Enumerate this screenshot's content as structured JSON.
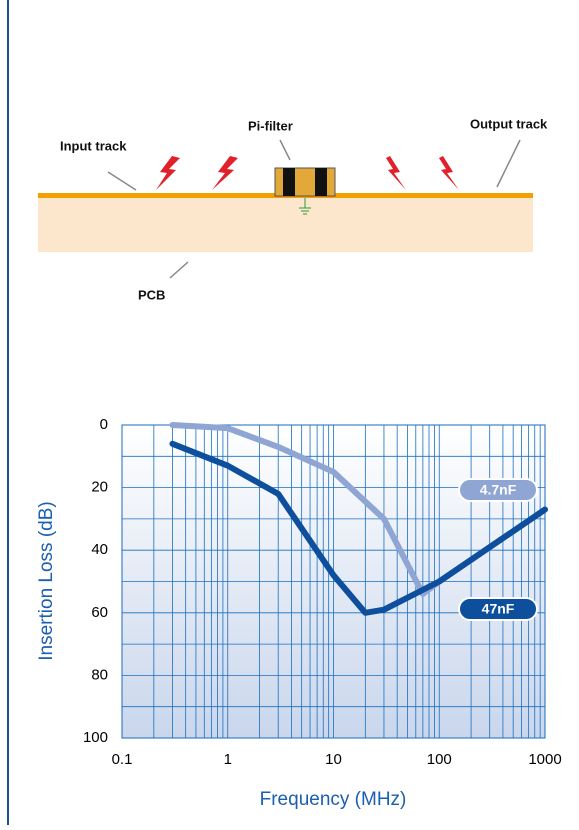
{
  "diagram": {
    "labels": {
      "input": "Input track",
      "filter": "Pi-filter",
      "output": "Output track",
      "pcb": "PCB"
    }
  },
  "chart_data": {
    "type": "line",
    "x_label": "Frequency (MHz)",
    "y_label": "Insertion Loss (dB)",
    "xlim": [
      0.1,
      1000
    ],
    "xticks": [
      0.1,
      1,
      10,
      100,
      1000
    ],
    "x_log": true,
    "ylim": [
      0,
      100
    ],
    "yticks": [
      0,
      20,
      40,
      60,
      80,
      100
    ],
    "y_inverted": true,
    "grid": true,
    "series": [
      {
        "name": "4.7nF",
        "color": "#8fa6d4",
        "x": [
          0.3,
          1,
          3,
          10,
          30,
          70,
          100,
          1000
        ],
        "values": [
          0,
          1,
          7,
          15,
          30,
          54,
          50,
          27
        ]
      },
      {
        "name": "47nF",
        "color": "#0d4f9c",
        "x": [
          0.3,
          1,
          3,
          10,
          20,
          30,
          100,
          1000
        ],
        "values": [
          6,
          13,
          22,
          48,
          60,
          59,
          50,
          27
        ]
      }
    ]
  }
}
